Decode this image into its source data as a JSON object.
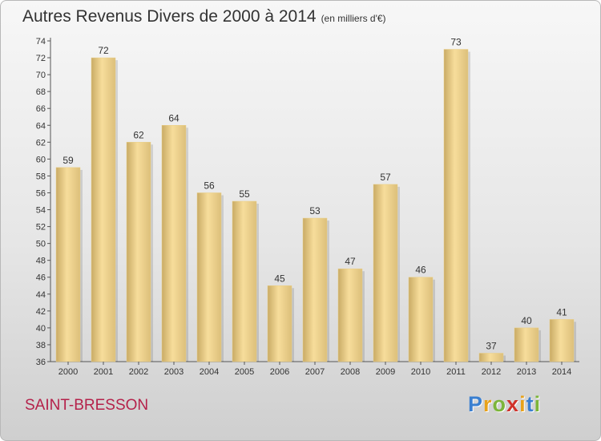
{
  "header": {
    "title": "Autres Revenus Divers de 2000 à 2014",
    "unit": "(en milliers d'€)"
  },
  "footer": {
    "commune": "SAINT-BRESSON",
    "logo": "Proxiti"
  },
  "colors": {
    "title": "#333333",
    "commune": "#b5214a",
    "bar_light": "#f7dd9b",
    "bar_dark": "#c9ab65"
  },
  "chart_data": {
    "type": "bar",
    "categories": [
      "2000",
      "2001",
      "2002",
      "2003",
      "2004",
      "2005",
      "2006",
      "2007",
      "2008",
      "2009",
      "2010",
      "2011",
      "2012",
      "2013",
      "2014"
    ],
    "values": [
      59,
      72,
      62,
      64,
      56,
      55,
      45,
      53,
      47,
      57,
      46,
      73,
      37,
      40,
      41
    ],
    "ylim": [
      36,
      74
    ],
    "yticks": [
      36,
      38,
      40,
      42,
      44,
      46,
      48,
      50,
      52,
      54,
      56,
      58,
      60,
      62,
      64,
      66,
      68,
      70,
      72,
      74
    ],
    "grid": false,
    "legend": "none"
  }
}
